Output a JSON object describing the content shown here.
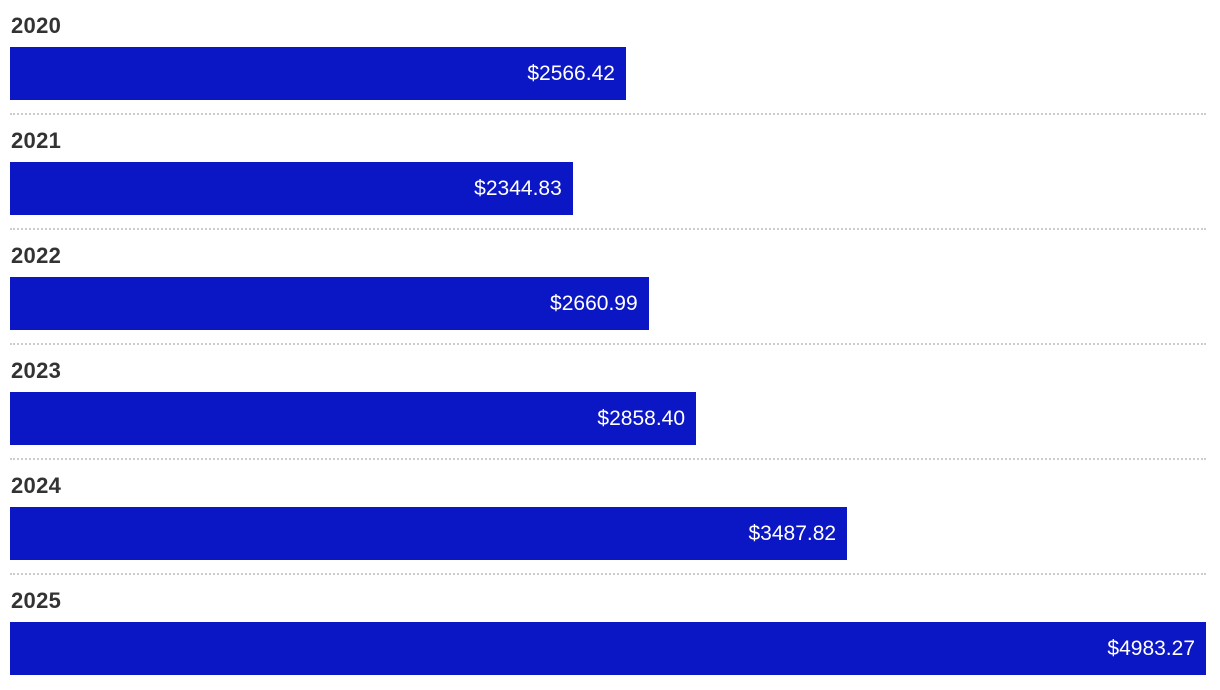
{
  "chart": {
    "orientation": "horizontal",
    "bar_color": "#0b16c4",
    "separator_color": "#cccccc",
    "year_label_color": "#333333",
    "value_label_color": "#ffffff"
  },
  "chart_data": {
    "type": "bar",
    "categories": [
      "2020",
      "2021",
      "2022",
      "2023",
      "2024",
      "2025"
    ],
    "values": [
      2566.42,
      2344.83,
      2660.99,
      2858.4,
      3487.82,
      4983.27
    ],
    "value_labels": [
      "$2566.42",
      "$2344.83",
      "$2660.99",
      "$2858.40",
      "$3487.82",
      "$4983.27"
    ],
    "title": "",
    "xlabel": "",
    "ylabel": "",
    "xlim": [
      0,
      4983.27
    ],
    "grid": false,
    "legend": false,
    "layout": "category label above each bar, value label right-aligned inside bar, dotted separator between rows"
  },
  "rows": [
    {
      "year": "2020",
      "value": 2566.42,
      "value_label": "$2566.42"
    },
    {
      "year": "2021",
      "value": 2344.83,
      "value_label": "$2344.83"
    },
    {
      "year": "2022",
      "value": 2660.99,
      "value_label": "$2660.99"
    },
    {
      "year": "2023",
      "value": 2858.4,
      "value_label": "$2858.40"
    },
    {
      "year": "2024",
      "value": 3487.82,
      "value_label": "$3487.82"
    },
    {
      "year": "2025",
      "value": 4983.27,
      "value_label": "$4983.27"
    }
  ]
}
